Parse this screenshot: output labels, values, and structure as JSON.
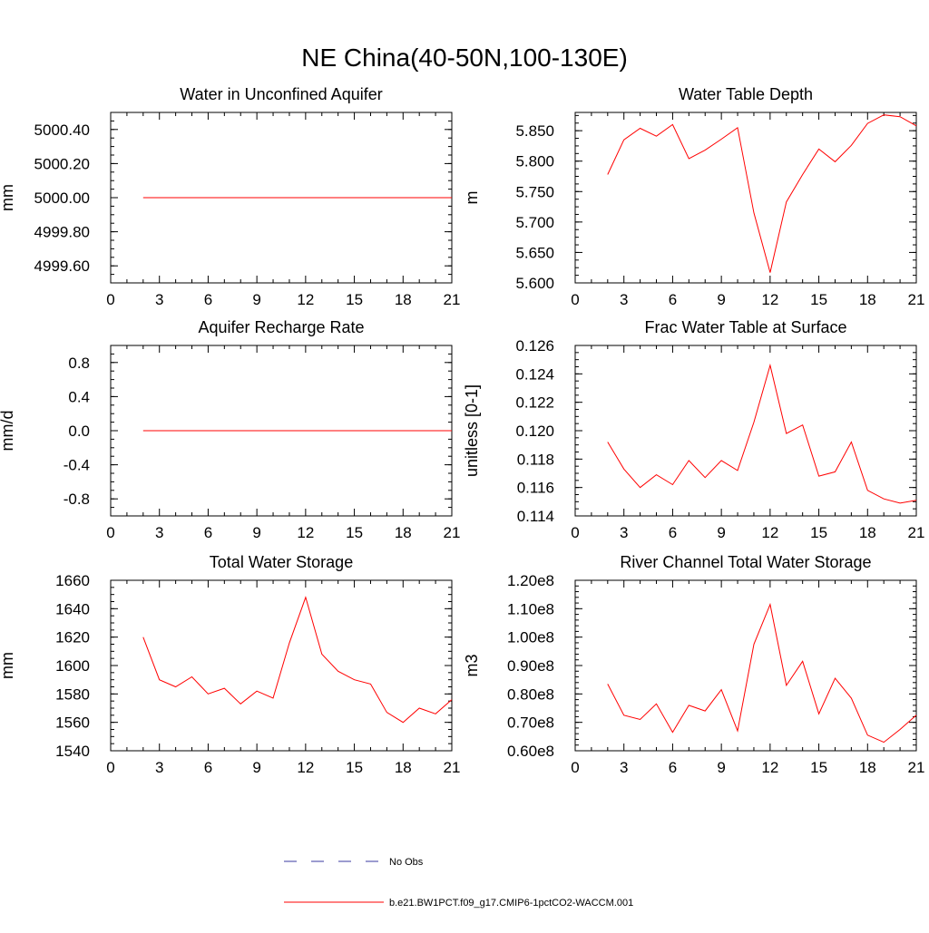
{
  "figure": {
    "title": "NE China(40-50N,100-130E)"
  },
  "colors": {
    "model_line": "#ff0000",
    "obs_line": "#3a3aa0",
    "axis": "#000000"
  },
  "legend": {
    "items": [
      {
        "label": "No Obs",
        "style": "dashed",
        "color": "#3a3aa0"
      },
      {
        "label": "b.e21.BW1PCT.f09_g17.CMIP6-1pctCO2-WACCM.001",
        "style": "solid",
        "color": "#ff0000"
      }
    ]
  },
  "chart_data": [
    {
      "type": "line",
      "title": "Water in Unconfined Aquifer",
      "xlabel": "",
      "ylabel": "mm",
      "xlim": [
        0,
        21
      ],
      "ylim": [
        4999.5,
        5000.5
      ],
      "xticks": [
        0,
        3,
        6,
        9,
        12,
        15,
        18,
        21
      ],
      "yticks": [
        4999.6,
        4999.8,
        5000.0,
        5000.2,
        5000.4
      ],
      "ytick_labels": [
        "4999.60",
        "4999.80",
        "5000.00",
        "5000.20",
        "5000.40"
      ],
      "yminor_step": 0.05,
      "series": [
        {
          "x": [
            2,
            3,
            4,
            5,
            6,
            7,
            8,
            9,
            10,
            11,
            12,
            13,
            14,
            15,
            16,
            17,
            18,
            19,
            20,
            21
          ],
          "y": [
            5000,
            5000,
            5000,
            5000,
            5000,
            5000,
            5000,
            5000,
            5000,
            5000,
            5000,
            5000,
            5000,
            5000,
            5000,
            5000,
            5000,
            5000,
            5000,
            5000
          ]
        }
      ]
    },
    {
      "type": "line",
      "title": "Water Table Depth",
      "xlabel": "",
      "ylabel": "m",
      "xlim": [
        0,
        21
      ],
      "ylim": [
        5.6,
        5.88
      ],
      "xticks": [
        0,
        3,
        6,
        9,
        12,
        15,
        18,
        21
      ],
      "yticks": [
        5.6,
        5.65,
        5.7,
        5.75,
        5.8,
        5.85
      ],
      "ytick_labels": [
        "5.600",
        "5.650",
        "5.700",
        "5.750",
        "5.800",
        "5.850"
      ],
      "yminor_step": 0.0125,
      "series": [
        {
          "x": [
            2,
            3,
            4,
            5,
            6,
            7,
            8,
            9,
            10,
            11,
            12,
            13,
            14,
            15,
            16,
            17,
            18,
            19,
            20,
            21
          ],
          "y": [
            5.778,
            5.835,
            5.854,
            5.841,
            5.86,
            5.804,
            5.818,
            5.836,
            5.855,
            5.715,
            5.617,
            5.733,
            5.778,
            5.82,
            5.799,
            5.826,
            5.862,
            5.876,
            5.873,
            5.858
          ]
        }
      ]
    },
    {
      "type": "line",
      "title": "Aquifer Recharge Rate",
      "xlabel": "",
      "ylabel": "mm/d",
      "xlim": [
        0,
        21
      ],
      "ylim": [
        -1.0,
        1.0
      ],
      "xticks": [
        0,
        3,
        6,
        9,
        12,
        15,
        18,
        21
      ],
      "yticks": [
        -0.8,
        -0.4,
        0.0,
        0.4,
        0.8
      ],
      "ytick_labels": [
        "-0.8",
        "-0.4",
        "0.0",
        "0.4",
        "0.8"
      ],
      "yminor_step": 0.1,
      "series": [
        {
          "x": [
            2,
            3,
            4,
            5,
            6,
            7,
            8,
            9,
            10,
            11,
            12,
            13,
            14,
            15,
            16,
            17,
            18,
            19,
            20,
            21
          ],
          "y": [
            0,
            0,
            0,
            0,
            0,
            0,
            0,
            0,
            0,
            0,
            0,
            0,
            0,
            0,
            0,
            0,
            0,
            0,
            0,
            0
          ]
        }
      ]
    },
    {
      "type": "line",
      "title": "Frac Water Table at Surface",
      "xlabel": "",
      "ylabel": "unitless [0-1]",
      "xlim": [
        0,
        21
      ],
      "ylim": [
        0.114,
        0.126
      ],
      "xticks": [
        0,
        3,
        6,
        9,
        12,
        15,
        18,
        21
      ],
      "yticks": [
        0.114,
        0.116,
        0.118,
        0.12,
        0.122,
        0.124,
        0.126
      ],
      "ytick_labels": [
        "0.114",
        "0.116",
        "0.118",
        "0.120",
        "0.122",
        "0.124",
        "0.126"
      ],
      "yminor_step": 0.0005,
      "series": [
        {
          "x": [
            2,
            3,
            4,
            5,
            6,
            7,
            8,
            9,
            10,
            11,
            12,
            13,
            14,
            15,
            16,
            17,
            18,
            19,
            20,
            21
          ],
          "y": [
            0.1192,
            0.1173,
            0.116,
            0.1169,
            0.1162,
            0.1179,
            0.1167,
            0.1179,
            0.1172,
            0.1206,
            0.1246,
            0.1198,
            0.1204,
            0.1168,
            0.1171,
            0.1192,
            0.1158,
            0.1152,
            0.1149,
            0.1151
          ]
        }
      ]
    },
    {
      "type": "line",
      "title": "Total Water Storage",
      "xlabel": "",
      "ylabel": "mm",
      "xlim": [
        0,
        21
      ],
      "ylim": [
        1540,
        1660
      ],
      "xticks": [
        0,
        3,
        6,
        9,
        12,
        15,
        18,
        21
      ],
      "yticks": [
        1540,
        1560,
        1580,
        1600,
        1620,
        1640,
        1660
      ],
      "ytick_labels": [
        "1540",
        "1560",
        "1580",
        "1600",
        "1620",
        "1640",
        "1660"
      ],
      "yminor_step": 5,
      "series": [
        {
          "x": [
            2,
            3,
            4,
            5,
            6,
            7,
            8,
            9,
            10,
            11,
            12,
            13,
            14,
            15,
            16,
            17,
            18,
            19,
            20,
            21
          ],
          "y": [
            1620,
            1590,
            1585,
            1592,
            1580,
            1584,
            1573,
            1582,
            1577,
            1616,
            1648,
            1608,
            1596,
            1590,
            1587,
            1567,
            1560,
            1570,
            1566,
            1576
          ]
        }
      ]
    },
    {
      "type": "line",
      "title": "River Channel Total Water Storage",
      "xlabel": "",
      "ylabel": "m3",
      "xlim": [
        0,
        21
      ],
      "ylim": [
        60000000,
        120000000
      ],
      "xticks": [
        0,
        3,
        6,
        9,
        12,
        15,
        18,
        21
      ],
      "yticks": [
        60000000,
        70000000,
        80000000,
        90000000,
        100000000,
        110000000,
        120000000
      ],
      "ytick_labels": [
        "0.60e8",
        "0.70e8",
        "0.80e8",
        "0.90e8",
        "1.00e8",
        "1.10e8",
        "1.20e8"
      ],
      "yminor_step": 2000000,
      "series": [
        {
          "x": [
            2,
            3,
            4,
            5,
            6,
            7,
            8,
            9,
            10,
            11,
            12,
            13,
            14,
            15,
            16,
            17,
            18,
            19,
            20,
            21
          ],
          "y": [
            83500000,
            72500000,
            71000000,
            76500000,
            66500000,
            76000000,
            74000000,
            81500000,
            67000000,
            97500000,
            111500000,
            83000000,
            91500000,
            73000000,
            85500000,
            78500000,
            65500000,
            63000000,
            67500000,
            72500000
          ]
        }
      ]
    }
  ]
}
